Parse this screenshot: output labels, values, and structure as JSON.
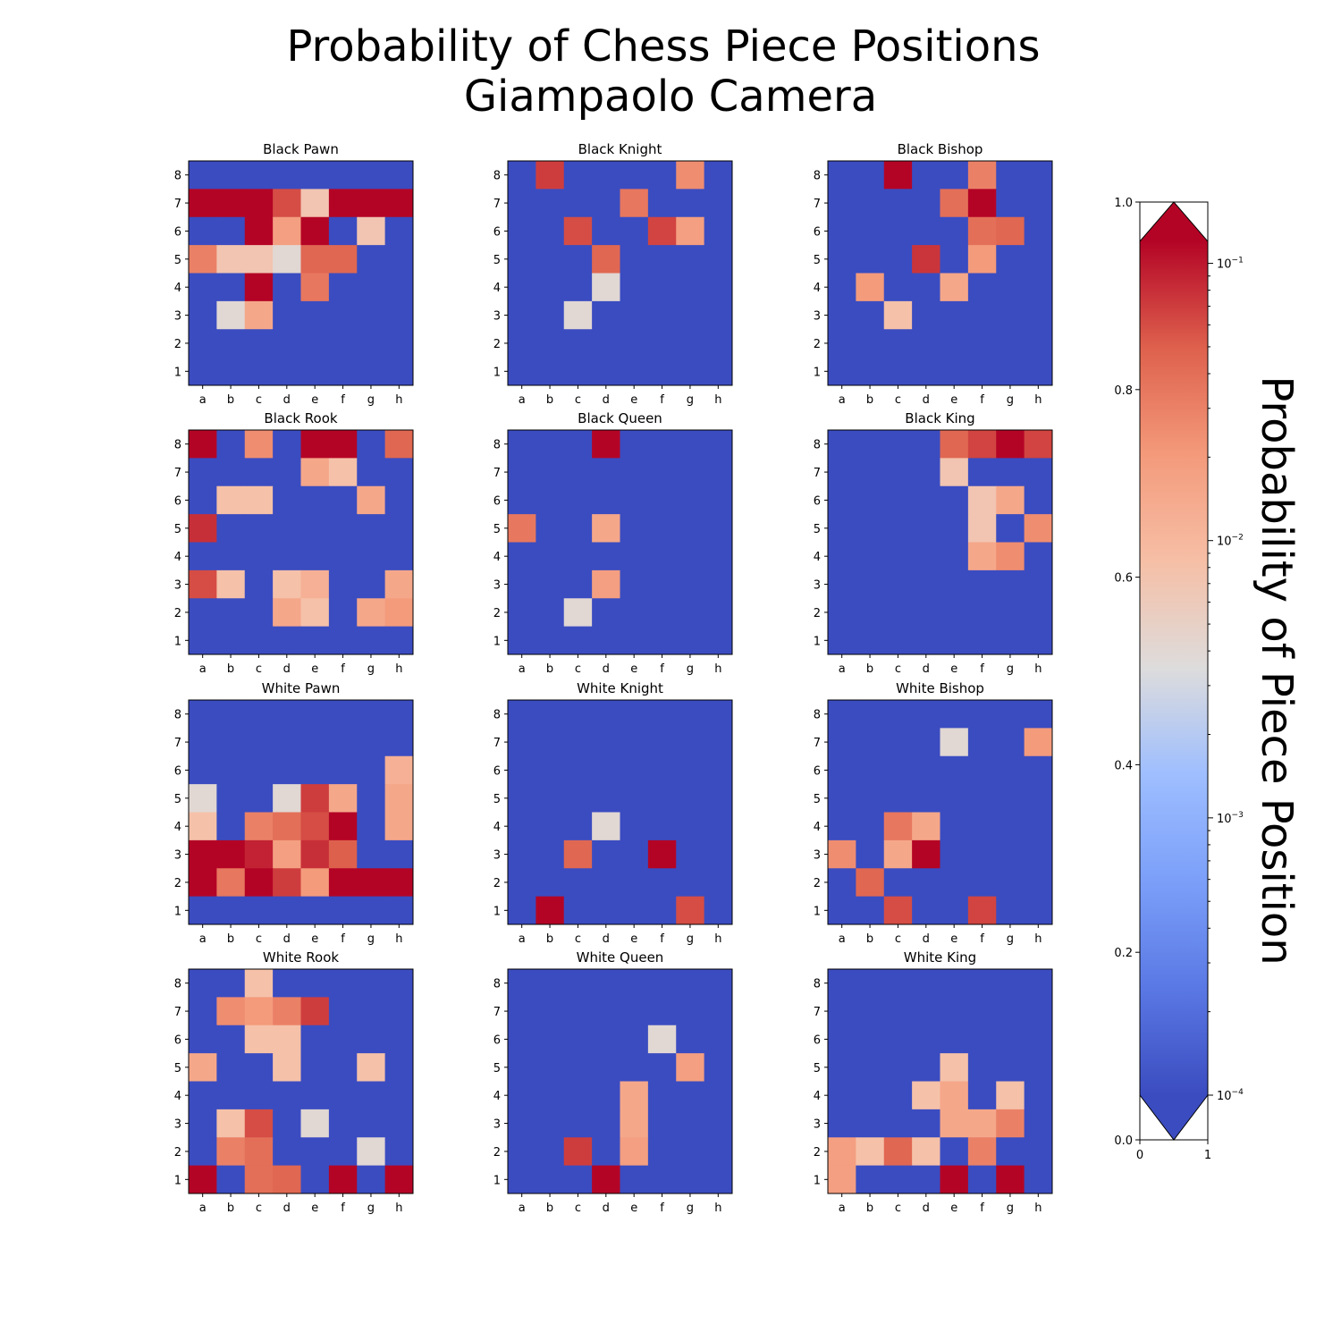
{
  "title_line1": "Probability of Chess Piece Positions",
  "title_line2": "Giampaolo Camera",
  "chart_data": {
    "type": "heatmap",
    "files": [
      "a",
      "b",
      "c",
      "d",
      "e",
      "f",
      "g",
      "h"
    ],
    "ranks": [
      "8",
      "7",
      "6",
      "5",
      "4",
      "3",
      "2",
      "1"
    ],
    "colormap": "coolwarm",
    "color_scale": "log",
    "vmin": 0.0001,
    "vmax": 0.12,
    "colorbar_label": "Probability of Piece Position",
    "colorbar_log_ticks": [
      {
        "value": 0.1,
        "label": "10",
        "exp": "−1"
      },
      {
        "value": 0.01,
        "label": "10",
        "exp": "−2"
      },
      {
        "value": 0.001,
        "label": "10",
        "exp": "−3"
      },
      {
        "value": 0.0001,
        "label": "10",
        "exp": "−4"
      }
    ],
    "colorbar_linear_ticks": [
      "0.0",
      "0.2",
      "0.4",
      "0.6",
      "0.8",
      "1.0"
    ],
    "colorbar_bottom_ticks": [
      "0",
      "1"
    ],
    "panels": [
      {
        "title": "Black Pawn",
        "grid": [
          [
            0,
            0,
            0,
            0,
            0,
            0,
            0,
            0
          ],
          [
            0.2,
            0.2,
            0.2,
            0.06,
            0.007,
            0.2,
            0.2,
            0.2
          ],
          [
            0,
            0,
            0.2,
            0.018,
            0.2,
            0,
            0.007,
            0
          ],
          [
            0.03,
            0.007,
            0.007,
            0.004,
            0.045,
            0.045,
            0,
            0
          ],
          [
            0,
            0,
            0.2,
            0,
            0.035,
            0,
            0,
            0
          ],
          [
            0,
            0.004,
            0.015,
            0,
            0,
            0,
            0,
            0
          ],
          [
            0,
            0,
            0,
            0,
            0,
            0,
            0,
            0
          ],
          [
            0,
            0,
            0,
            0,
            0,
            0,
            0,
            0
          ]
        ]
      },
      {
        "title": "Black Knight",
        "grid": [
          [
            0,
            0.07,
            0,
            0,
            0,
            0,
            0.025,
            0
          ],
          [
            0,
            0,
            0,
            0,
            0.035,
            0,
            0,
            0
          ],
          [
            0,
            0,
            0.06,
            0,
            0,
            0.065,
            0.018,
            0
          ],
          [
            0,
            0,
            0,
            0.045,
            0,
            0,
            0,
            0
          ],
          [
            0,
            0,
            0,
            0.004,
            0,
            0,
            0,
            0
          ],
          [
            0,
            0,
            0.004,
            0,
            0,
            0,
            0,
            0
          ],
          [
            0,
            0,
            0,
            0,
            0,
            0,
            0,
            0
          ],
          [
            0,
            0,
            0,
            0,
            0,
            0,
            0,
            0
          ]
        ]
      },
      {
        "title": "Black Bishop",
        "grid": [
          [
            0,
            0,
            0.2,
            0,
            0,
            0.03,
            0,
            0
          ],
          [
            0,
            0,
            0,
            0,
            0.04,
            0.2,
            0,
            0
          ],
          [
            0,
            0,
            0,
            0,
            0,
            0.04,
            0.045,
            0
          ],
          [
            0,
            0,
            0,
            0.075,
            0,
            0.02,
            0,
            0
          ],
          [
            0,
            0.02,
            0,
            0,
            0.015,
            0,
            0,
            0
          ],
          [
            0,
            0,
            0.008,
            0,
            0,
            0,
            0,
            0
          ],
          [
            0,
            0,
            0,
            0,
            0,
            0,
            0,
            0
          ],
          [
            0,
            0,
            0,
            0,
            0,
            0,
            0,
            0
          ]
        ]
      },
      {
        "title": "Black Rook",
        "grid": [
          [
            0.2,
            0,
            0.025,
            0,
            0.2,
            0.2,
            0,
            0.045
          ],
          [
            0,
            0,
            0,
            0,
            0.015,
            0.008,
            0,
            0
          ],
          [
            0,
            0.008,
            0.008,
            0,
            0,
            0,
            0.015,
            0
          ],
          [
            0.08,
            0,
            0,
            0,
            0,
            0,
            0,
            0
          ],
          [
            0,
            0,
            0,
            0,
            0,
            0,
            0,
            0
          ],
          [
            0.06,
            0.008,
            0,
            0.008,
            0.012,
            0,
            0,
            0.015
          ],
          [
            0,
            0,
            0,
            0.015,
            0.008,
            0,
            0.015,
            0.02
          ],
          [
            0,
            0,
            0,
            0,
            0,
            0,
            0,
            0
          ]
        ]
      },
      {
        "title": "Black Queen",
        "grid": [
          [
            0,
            0,
            0,
            0.2,
            0,
            0,
            0,
            0
          ],
          [
            0,
            0,
            0,
            0,
            0,
            0,
            0,
            0
          ],
          [
            0,
            0,
            0,
            0,
            0,
            0,
            0,
            0
          ],
          [
            0.035,
            0,
            0,
            0.015,
            0,
            0,
            0,
            0
          ],
          [
            0,
            0,
            0,
            0,
            0,
            0,
            0,
            0
          ],
          [
            0,
            0,
            0,
            0.018,
            0,
            0,
            0,
            0
          ],
          [
            0,
            0,
            0.004,
            0,
            0,
            0,
            0,
            0
          ],
          [
            0,
            0,
            0,
            0,
            0,
            0,
            0,
            0
          ]
        ]
      },
      {
        "title": "Black King",
        "grid": [
          [
            0,
            0,
            0,
            0,
            0.045,
            0.065,
            0.2,
            0.065
          ],
          [
            0,
            0,
            0,
            0,
            0.007,
            0,
            0,
            0
          ],
          [
            0,
            0,
            0,
            0,
            0,
            0.007,
            0.015,
            0
          ],
          [
            0,
            0,
            0,
            0,
            0,
            0.007,
            0,
            0.025
          ],
          [
            0,
            0,
            0,
            0,
            0,
            0.015,
            0.025,
            0
          ],
          [
            0,
            0,
            0,
            0,
            0,
            0,
            0,
            0
          ],
          [
            0,
            0,
            0,
            0,
            0,
            0,
            0,
            0
          ],
          [
            0,
            0,
            0,
            0,
            0,
            0,
            0,
            0
          ]
        ]
      },
      {
        "title": "White Pawn",
        "grid": [
          [
            0,
            0,
            0,
            0,
            0,
            0,
            0,
            0
          ],
          [
            0,
            0,
            0,
            0,
            0,
            0,
            0,
            0
          ],
          [
            0,
            0,
            0,
            0,
            0,
            0,
            0,
            0.012
          ],
          [
            0.004,
            0,
            0,
            0.004,
            0.07,
            0.015,
            0,
            0.015
          ],
          [
            0.008,
            0,
            0.03,
            0.04,
            0.06,
            0.2,
            0,
            0.015
          ],
          [
            0.2,
            0.2,
            0.09,
            0.018,
            0.08,
            0.05,
            0,
            0
          ],
          [
            0.15,
            0.035,
            0.2,
            0.07,
            0.02,
            0.2,
            0.2,
            0.2
          ],
          [
            0,
            0,
            0,
            0,
            0,
            0,
            0,
            0
          ]
        ]
      },
      {
        "title": "White Knight",
        "grid": [
          [
            0,
            0,
            0,
            0,
            0,
            0,
            0,
            0
          ],
          [
            0,
            0,
            0,
            0,
            0,
            0,
            0,
            0
          ],
          [
            0,
            0,
            0,
            0,
            0,
            0,
            0,
            0
          ],
          [
            0,
            0,
            0,
            0,
            0,
            0,
            0,
            0
          ],
          [
            0,
            0,
            0,
            0.004,
            0,
            0,
            0,
            0
          ],
          [
            0,
            0,
            0.045,
            0,
            0,
            0.2,
            0,
            0
          ],
          [
            0,
            0,
            0,
            0,
            0,
            0,
            0,
            0
          ],
          [
            0,
            0.2,
            0,
            0,
            0,
            0,
            0.06,
            0
          ]
        ]
      },
      {
        "title": "White Bishop",
        "grid": [
          [
            0,
            0,
            0,
            0,
            0,
            0,
            0,
            0
          ],
          [
            0,
            0,
            0,
            0,
            0.004,
            0,
            0,
            0.02
          ],
          [
            0,
            0,
            0,
            0,
            0,
            0,
            0,
            0
          ],
          [
            0,
            0,
            0,
            0,
            0,
            0,
            0,
            0
          ],
          [
            0,
            0,
            0.035,
            0.015,
            0,
            0,
            0,
            0
          ],
          [
            0.025,
            0,
            0.015,
            0.2,
            0,
            0,
            0,
            0
          ],
          [
            0,
            0.045,
            0,
            0,
            0,
            0,
            0,
            0
          ],
          [
            0,
            0,
            0.06,
            0,
            0,
            0.065,
            0,
            0
          ]
        ]
      },
      {
        "title": "White Rook",
        "grid": [
          [
            0,
            0,
            0.008,
            0,
            0,
            0,
            0,
            0
          ],
          [
            0,
            0.025,
            0.02,
            0.03,
            0.07,
            0,
            0,
            0
          ],
          [
            0,
            0,
            0.008,
            0.008,
            0,
            0,
            0,
            0
          ],
          [
            0.015,
            0,
            0,
            0.008,
            0,
            0,
            0.008,
            0
          ],
          [
            0,
            0,
            0,
            0,
            0,
            0,
            0,
            0
          ],
          [
            0,
            0.008,
            0.06,
            0,
            0.004,
            0,
            0,
            0
          ],
          [
            0,
            0.03,
            0.04,
            0,
            0,
            0,
            0.004,
            0
          ],
          [
            0.2,
            0,
            0.04,
            0.045,
            0,
            0.2,
            0,
            0.12
          ]
        ]
      },
      {
        "title": "White Queen",
        "grid": [
          [
            0,
            0,
            0,
            0,
            0,
            0,
            0,
            0
          ],
          [
            0,
            0,
            0,
            0,
            0,
            0,
            0,
            0
          ],
          [
            0,
            0,
            0,
            0,
            0,
            0.004,
            0,
            0
          ],
          [
            0,
            0,
            0,
            0,
            0,
            0,
            0.018,
            0
          ],
          [
            0,
            0,
            0,
            0,
            0.015,
            0,
            0,
            0
          ],
          [
            0,
            0,
            0,
            0,
            0.015,
            0,
            0,
            0
          ],
          [
            0,
            0,
            0.07,
            0,
            0.018,
            0,
            0,
            0
          ],
          [
            0,
            0,
            0,
            0.2,
            0,
            0,
            0,
            0
          ]
        ]
      },
      {
        "title": "White King",
        "grid": [
          [
            0,
            0,
            0,
            0,
            0,
            0,
            0,
            0
          ],
          [
            0,
            0,
            0,
            0,
            0,
            0,
            0,
            0
          ],
          [
            0,
            0,
            0,
            0,
            0,
            0,
            0,
            0
          ],
          [
            0,
            0,
            0,
            0,
            0.008,
            0,
            0,
            0
          ],
          [
            0,
            0,
            0,
            0.008,
            0.015,
            0,
            0.008,
            0
          ],
          [
            0,
            0,
            0,
            0,
            0.015,
            0.015,
            0.03,
            0
          ],
          [
            0.018,
            0.008,
            0.045,
            0.008,
            0,
            0.03,
            0,
            0
          ],
          [
            0.018,
            0,
            0,
            0,
            0.2,
            0,
            0.2,
            0
          ]
        ]
      }
    ]
  }
}
